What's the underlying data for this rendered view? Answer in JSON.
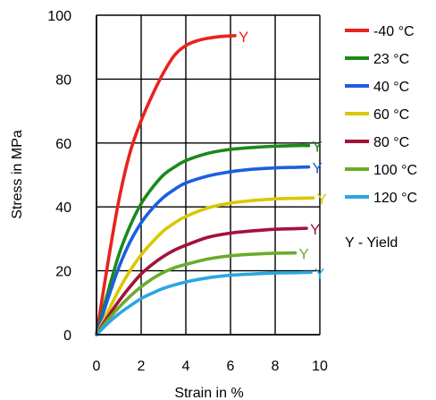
{
  "chart_data": {
    "type": "line",
    "title": "",
    "xlabel": "Strain in %",
    "ylabel": "Stress in MPa",
    "xlim": [
      0,
      10
    ],
    "ylim": [
      0,
      100
    ],
    "xticks": [
      0,
      2,
      4,
      6,
      8,
      10
    ],
    "yticks": [
      0,
      20,
      40,
      60,
      80,
      100
    ],
    "grid": true,
    "legend_position": "right",
    "note": "Y - Yield",
    "series": [
      {
        "name": "-40 °C",
        "color": "#e8231c",
        "yield_label": "Y",
        "x": [
          0,
          0.5,
          1,
          1.5,
          2,
          2.5,
          3,
          3.5,
          4,
          4.5,
          5,
          5.5,
          6.2
        ],
        "y": [
          0,
          22,
          42,
          57,
          67,
          75,
          82,
          87.5,
          90.5,
          92,
          92.8,
          93.3,
          93.6
        ]
      },
      {
        "name": "23 °C",
        "color": "#1a8a1a",
        "yield_label": "Y",
        "x": [
          0,
          0.5,
          1,
          1.5,
          2,
          2.5,
          3,
          3.5,
          4,
          5,
          6,
          7,
          8,
          9,
          9.5
        ],
        "y": [
          0,
          13,
          25,
          34,
          41,
          46,
          50,
          52.5,
          54.5,
          56.8,
          58,
          58.6,
          59,
          59.2,
          59.2
        ]
      },
      {
        "name": "40 °C",
        "color": "#1c5fe0",
        "yield_label": "Y",
        "x": [
          0,
          0.5,
          1,
          1.5,
          2,
          2.5,
          3,
          3.5,
          4,
          5,
          6,
          7,
          8,
          9,
          9.5
        ],
        "y": [
          0,
          11,
          21,
          29,
          35,
          39.5,
          43,
          45.5,
          47.5,
          49.7,
          51,
          51.8,
          52.2,
          52.4,
          52.5
        ]
      },
      {
        "name": "60 °C",
        "color": "#d9c800",
        "yield_label": "Y",
        "x": [
          0,
          0.5,
          1,
          1.5,
          2,
          2.5,
          3,
          3.5,
          4,
          5,
          6,
          7,
          8,
          9,
          9.7
        ],
        "y": [
          0,
          7,
          14,
          20,
          25,
          29,
          32.5,
          35,
          37,
          39.7,
          41.2,
          42,
          42.5,
          42.7,
          42.8
        ]
      },
      {
        "name": "80 °C",
        "color": "#a3123a",
        "yield_label": "Y",
        "x": [
          0,
          0.5,
          1,
          1.5,
          2,
          2.5,
          3,
          3.5,
          4,
          5,
          6,
          7,
          8,
          9,
          9.4
        ],
        "y": [
          0,
          5.5,
          10.5,
          15,
          19,
          22,
          24.5,
          26.5,
          28,
          30.5,
          31.8,
          32.5,
          33,
          33.2,
          33.3
        ]
      },
      {
        "name": "100 °C",
        "color": "#6aac2a",
        "yield_label": "Y",
        "x": [
          0,
          0.5,
          1,
          1.5,
          2,
          2.5,
          3,
          3.5,
          4,
          5,
          6,
          7,
          8,
          8.9
        ],
        "y": [
          0,
          4.5,
          8.5,
          12,
          15,
          17.5,
          19.5,
          21,
          22,
          23.7,
          24.7,
          25.2,
          25.5,
          25.6
        ]
      },
      {
        "name": "120 °C",
        "color": "#2aa7e0",
        "yield_label": "Y",
        "x": [
          0,
          0.5,
          1,
          1.5,
          2,
          2.5,
          3,
          3.5,
          4,
          5,
          6,
          7,
          8,
          9,
          9.6
        ],
        "y": [
          0,
          3.5,
          6.5,
          9,
          11.3,
          13,
          14.5,
          15.6,
          16.5,
          17.8,
          18.6,
          19,
          19.3,
          19.4,
          19.5
        ]
      }
    ]
  }
}
